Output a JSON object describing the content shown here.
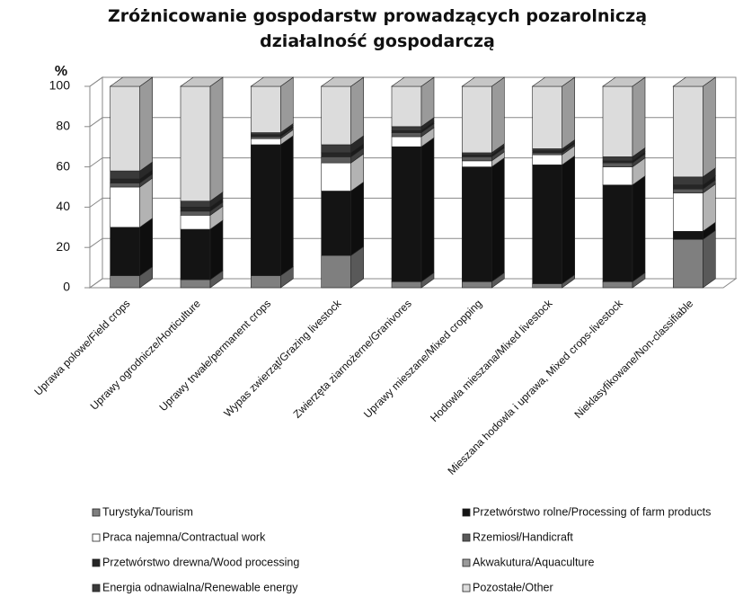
{
  "chart_data": {
    "type": "bar3d_stacked",
    "title": "Zróżnicowanie gospodarstw prowadzących pozarolniczą działalność gospodarczą",
    "ylabel": "%",
    "categories": [
      "Uprawa polowe/Field crops",
      "Uprawy ogrodnicze/Horticulture",
      "Uprawy trwałe/permanent crops",
      "Wypas zwierząt/Grazing livestock",
      "Zwierzęta ziarnożerne/Granivores",
      "Uprawy mieszane/Mixed cropping",
      "Hodowla mieszana/Mixed livestock",
      "Mieszana hodowla i uprawa, Mixed crops-livestock",
      "Nieklasyfikowane/Non-classifiable"
    ],
    "series": [
      {
        "name": "Turystyka/Tourism",
        "color": "#7f7f7f",
        "values": [
          6,
          4,
          6,
          16,
          3,
          3,
          2,
          3,
          24
        ]
      },
      {
        "name": "Przetwórstwo rolne/Processing of farm products",
        "color": "#141414",
        "values": [
          24,
          25,
          65,
          32,
          67,
          57,
          59,
          48,
          4
        ]
      },
      {
        "name": "Praca najemna/Contractual work",
        "color": "#ffffff",
        "values": [
          20,
          7,
          3,
          14,
          5,
          3,
          5,
          9,
          19
        ]
      },
      {
        "name": "Rzemiosł/Handicraft",
        "color": "#5a5a5a",
        "values": [
          2,
          2,
          1,
          3,
          2,
          2,
          1,
          2,
          2
        ]
      },
      {
        "name": "Przetwórstwo drewna/Wood processing",
        "color": "#262626",
        "values": [
          2,
          2,
          1,
          2,
          1,
          1,
          1,
          1,
          2
        ]
      },
      {
        "name": "Akwakutura/Aquaculture",
        "color": "#9a9a9a",
        "values": [
          0,
          0,
          0,
          0,
          0,
          0,
          0,
          0,
          0
        ]
      },
      {
        "name": "Energia odnawialna/Renewable energy",
        "color": "#3a3a3a",
        "values": [
          4,
          3,
          1,
          4,
          2,
          1,
          1,
          2,
          4
        ]
      },
      {
        "name": "Pozostałe/Other",
        "color": "#dcdcdc",
        "values": [
          42,
          57,
          23,
          29,
          20,
          33,
          31,
          35,
          45
        ]
      }
    ],
    "ylim": [
      0,
      100
    ],
    "yticks": [
      0,
      20,
      40,
      60,
      80,
      100
    ],
    "grid": true
  }
}
